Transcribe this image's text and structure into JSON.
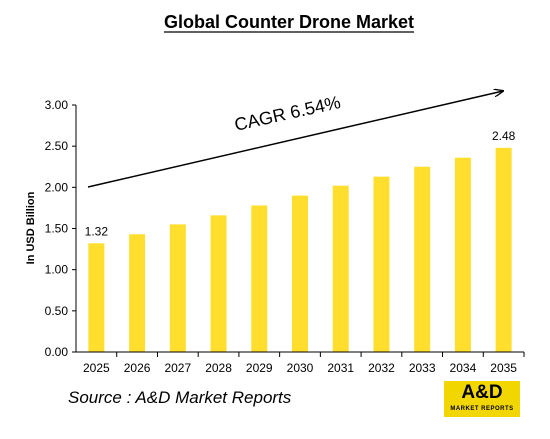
{
  "chart_data": {
    "type": "bar",
    "title": "Global Counter Drone Market",
    "ylabel": "In USD Billion",
    "xlabel": "",
    "categories": [
      "2025",
      "2026",
      "2027",
      "2028",
      "2029",
      "2030",
      "2031",
      "2032",
      "2033",
      "2034",
      "2035"
    ],
    "values": [
      1.32,
      1.43,
      1.55,
      1.66,
      1.78,
      1.9,
      2.02,
      2.13,
      2.25,
      2.36,
      2.48
    ],
    "data_labels": [
      {
        "category": "2025",
        "text": "1.32"
      },
      {
        "category": "2035",
        "text": "2.48"
      }
    ],
    "ylim": [
      0,
      3
    ],
    "yticks": [
      "0.00",
      "0.50",
      "1.00",
      "1.50",
      "2.00",
      "2.50",
      "3.00"
    ],
    "annotation": "CAGR 6.54%",
    "grid": false,
    "legend": "none",
    "colors": {
      "bar": "#ffde2e",
      "axis": "#000000",
      "arrow": "#000000"
    }
  },
  "source": "Source : A&D Market Reports",
  "logo": {
    "name": "A&D",
    "subtitle": "MARKET REPORTS",
    "color": "#f2d600"
  }
}
